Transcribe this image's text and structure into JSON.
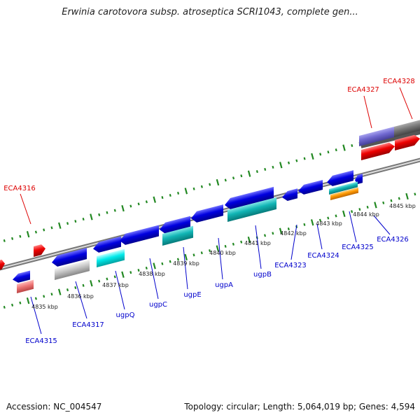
{
  "header": {
    "title": "Erwinia carotovora subsp. atroseptica SCRI1043, complete gen..."
  },
  "footer": {
    "accession": "Accession: NC_004547",
    "summary": "Topology: circular; Length: 5,064,019 bp; Genes: 4,594"
  },
  "map": {
    "kbp_ticks": [
      "4835 kbp",
      "4836 kbp",
      "4837 kbp",
      "4838 kbp",
      "4839 kbp",
      "4840 kbp",
      "4841 kbp",
      "4842 kbp",
      "4843 kbp",
      "4844 kbp",
      "4845 kbp"
    ],
    "genes": [
      {
        "label": "ECA4315",
        "strand": "-",
        "color": "#0000cc"
      },
      {
        "label": "ECA4316",
        "strand": "+",
        "color": "#dd0000"
      },
      {
        "label": "ECA4317",
        "strand": "-",
        "color": "#0000cc"
      },
      {
        "label": "ugpQ",
        "strand": "-",
        "color": "#0000cc"
      },
      {
        "label": "ugpC",
        "strand": "-",
        "color": "#0000cc"
      },
      {
        "label": "ugpE",
        "strand": "-",
        "color": "#0000cc"
      },
      {
        "label": "ugpA",
        "strand": "-",
        "color": "#0000cc"
      },
      {
        "label": "ugpB",
        "strand": "-",
        "color": "#0000cc"
      },
      {
        "label": "ECA4323",
        "strand": "-",
        "color": "#0000cc"
      },
      {
        "label": "ECA4324",
        "strand": "-",
        "color": "#0000cc"
      },
      {
        "label": "ECA4325",
        "strand": "-",
        "color": "#0000cc"
      },
      {
        "label": "ECA4326",
        "strand": "-",
        "color": "#0000cc"
      },
      {
        "label": "ECA4327",
        "strand": "+",
        "color": "#dd0000"
      },
      {
        "label": "ECA4328",
        "strand": "+",
        "color": "#dd0000"
      }
    ]
  }
}
